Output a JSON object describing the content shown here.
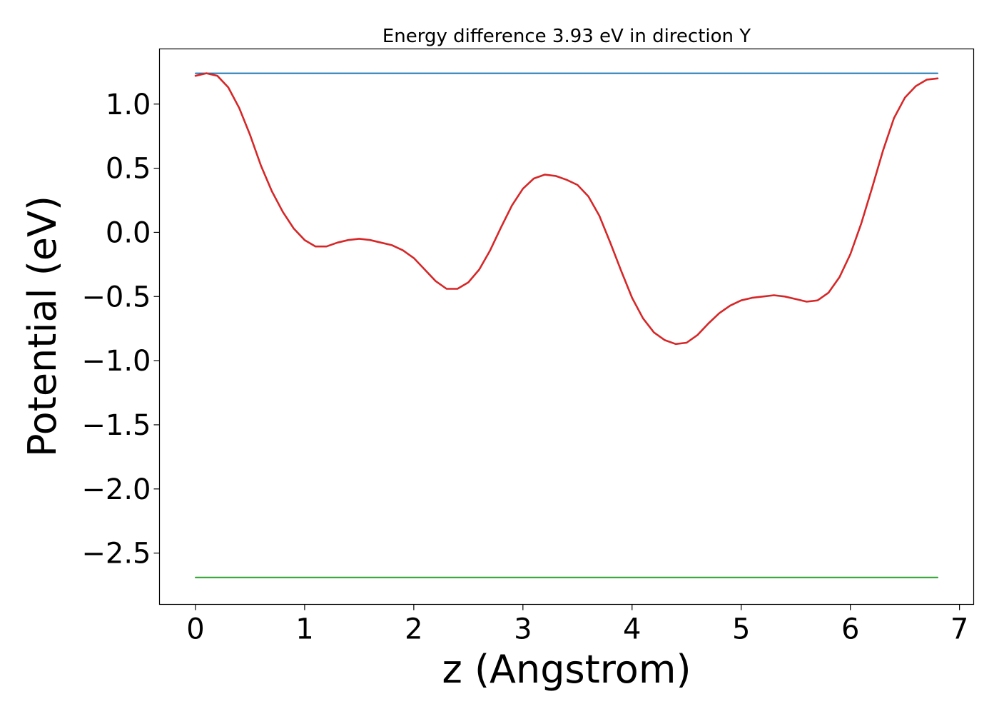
{
  "chart_data": {
    "type": "line",
    "title": "Energy difference 3.93 eV in direction Y",
    "xlabel": "z (Angstrom)",
    "ylabel": "Potential (eV)",
    "xlim": [
      -0.33,
      7.13
    ],
    "ylim": [
      -2.9,
      1.43
    ],
    "xticks": [
      0,
      1,
      2,
      3,
      4,
      5,
      6,
      7
    ],
    "xtick_labels": [
      "0",
      "1",
      "2",
      "3",
      "4",
      "5",
      "6",
      "7"
    ],
    "yticks": [
      1.0,
      0.5,
      0.0,
      -0.5,
      -1.0,
      -1.5,
      -2.0,
      -2.5
    ],
    "ytick_labels": [
      "1.0",
      "0.5",
      "0.0",
      "−0.5",
      "−1.0",
      "−1.5",
      "−2.0",
      "−2.5"
    ],
    "grid": false,
    "series": [
      {
        "color": "#d62728",
        "x": [
          0.0,
          0.1,
          0.2,
          0.3,
          0.4,
          0.5,
          0.6,
          0.7,
          0.8,
          0.9,
          1.0,
          1.1,
          1.2,
          1.3,
          1.4,
          1.5,
          1.6,
          1.7,
          1.8,
          1.9,
          2.0,
          2.1,
          2.2,
          2.3,
          2.4,
          2.5,
          2.6,
          2.7,
          2.8,
          2.9,
          3.0,
          3.1,
          3.2,
          3.3,
          3.4,
          3.5,
          3.6,
          3.7,
          3.8,
          3.9,
          4.0,
          4.1,
          4.2,
          4.3,
          4.4,
          4.5,
          4.6,
          4.7,
          4.8,
          4.9,
          5.0,
          5.1,
          5.2,
          5.3,
          5.4,
          5.5,
          5.6,
          5.7,
          5.8,
          5.9,
          6.0,
          6.1,
          6.2,
          6.3,
          6.4,
          6.5,
          6.6,
          6.7,
          6.8
        ],
        "y": [
          1.22,
          1.24,
          1.22,
          1.13,
          0.97,
          0.76,
          0.52,
          0.32,
          0.16,
          0.03,
          -0.06,
          -0.11,
          -0.11,
          -0.08,
          -0.06,
          -0.05,
          -0.06,
          -0.08,
          -0.1,
          -0.14,
          -0.2,
          -0.29,
          -0.38,
          -0.44,
          -0.44,
          -0.39,
          -0.29,
          -0.14,
          0.04,
          0.21,
          0.34,
          0.42,
          0.45,
          0.44,
          0.41,
          0.37,
          0.28,
          0.13,
          -0.08,
          -0.3,
          -0.51,
          -0.67,
          -0.78,
          -0.84,
          -0.87,
          -0.86,
          -0.8,
          -0.71,
          -0.63,
          -0.57,
          -0.53,
          -0.51,
          -0.5,
          -0.49,
          -0.5,
          -0.52,
          -0.54,
          -0.53,
          -0.47,
          -0.35,
          -0.17,
          0.07,
          0.35,
          0.64,
          0.89,
          1.05,
          1.14,
          1.19,
          1.2
        ]
      },
      {
        "color": "#1f77b4",
        "x": [
          0.0,
          6.8
        ],
        "y": [
          1.24,
          1.24
        ]
      },
      {
        "color": "#2ca02c",
        "x": [
          0.0,
          6.8
        ],
        "y": [
          -2.69,
          -2.69
        ]
      }
    ]
  }
}
